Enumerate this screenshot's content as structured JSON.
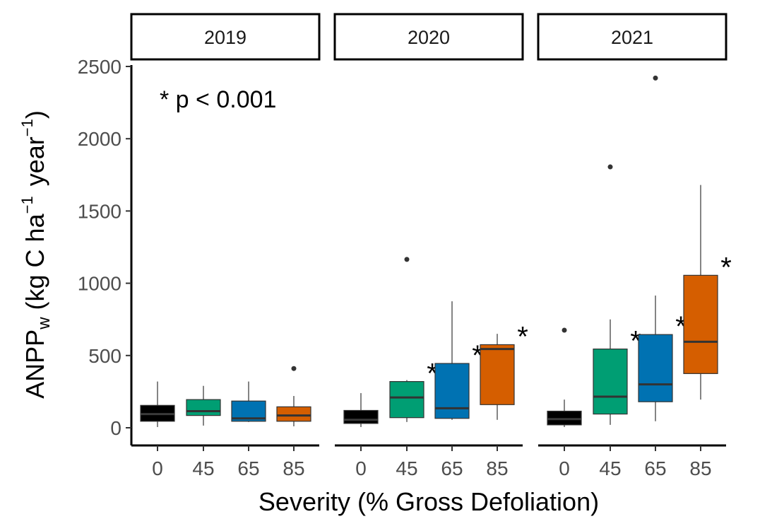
{
  "chart_data": {
    "type": "boxplot",
    "xlabel": "Severity (% Gross Defoliation)",
    "ylabel": {
      "prefix": "ANPP",
      "prefix_sub": "w",
      "units_open": "(kg C ha",
      "units_exp1": "−1",
      "units_mid": " year",
      "units_exp2": "−1",
      "units_close": ")"
    },
    "annotation": "* p < 0.001",
    "significance_marker": "*",
    "ylim": [
      -120,
      2550
    ],
    "y_ticks": [
      0,
      500,
      1000,
      1500,
      2000,
      2500
    ],
    "y_tick_labels": [
      "0",
      "500",
      "1000",
      "1500",
      "2000",
      "2500"
    ],
    "categories": [
      "0",
      "45",
      "65",
      "85"
    ],
    "colors": {
      "0": "#000000",
      "45": "#009E73",
      "65": "#0072B2",
      "85": "#D55E00"
    },
    "grid": false,
    "legend": "none",
    "panels": [
      {
        "label": "2019",
        "boxes": [
          {
            "category": "0",
            "min": 5,
            "q1": 45,
            "median": 95,
            "q3": 155,
            "max": 320,
            "outliers": [],
            "significant": false
          },
          {
            "category": "45",
            "min": 15,
            "q1": 85,
            "median": 115,
            "q3": 195,
            "max": 290,
            "outliers": [],
            "significant": false
          },
          {
            "category": "65",
            "min": 40,
            "q1": 45,
            "median": 65,
            "q3": 185,
            "max": 320,
            "outliers": [],
            "significant": false
          },
          {
            "category": "85",
            "min": 10,
            "q1": 45,
            "median": 85,
            "q3": 145,
            "max": 220,
            "outliers": [
              410
            ],
            "significant": false
          }
        ]
      },
      {
        "label": "2020",
        "boxes": [
          {
            "category": "0",
            "min": 5,
            "q1": 30,
            "median": 55,
            "q3": 120,
            "max": 240,
            "outliers": [],
            "significant": false
          },
          {
            "category": "45",
            "min": 40,
            "q1": 70,
            "median": 210,
            "q3": 320,
            "max": 330,
            "outliers": [
              1165
            ],
            "significant": true
          },
          {
            "category": "65",
            "min": 55,
            "q1": 65,
            "median": 135,
            "q3": 445,
            "max": 875,
            "outliers": [],
            "significant": true
          },
          {
            "category": "85",
            "min": 55,
            "q1": 160,
            "median": 545,
            "q3": 575,
            "max": 650,
            "outliers": [],
            "significant": true
          }
        ]
      },
      {
        "label": "2021",
        "boxes": [
          {
            "category": "0",
            "min": 5,
            "q1": 20,
            "median": 60,
            "q3": 115,
            "max": 195,
            "outliers": [
              675
            ],
            "significant": false
          },
          {
            "category": "45",
            "min": 20,
            "q1": 95,
            "median": 215,
            "q3": 545,
            "max": 750,
            "outliers": [
              1805
            ],
            "significant": true
          },
          {
            "category": "65",
            "min": 45,
            "q1": 180,
            "median": 300,
            "q3": 645,
            "max": 915,
            "outliers": [
              2420
            ],
            "significant": true
          },
          {
            "category": "85",
            "min": 195,
            "q1": 375,
            "median": 595,
            "q3": 1055,
            "max": 1680,
            "outliers": [],
            "significant": true
          }
        ]
      }
    ]
  }
}
